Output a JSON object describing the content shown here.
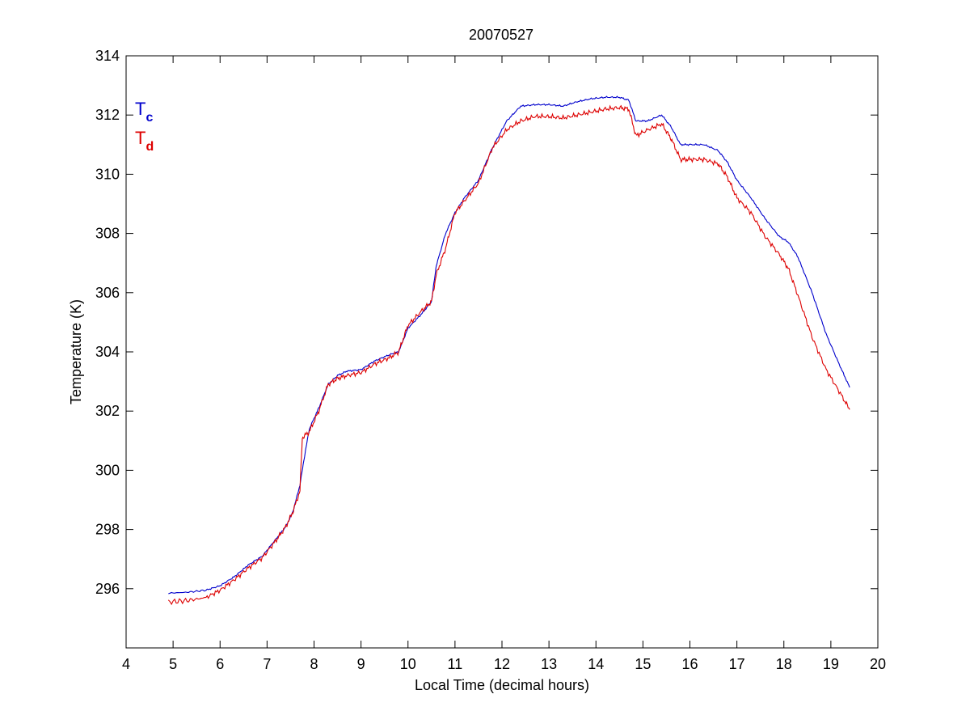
{
  "chart_data": {
    "type": "line",
    "title": "20070527",
    "xlabel": "Local Time (decimal hours)",
    "ylabel": "Temperature (K)",
    "xlim": [
      4,
      20
    ],
    "ylim": [
      294,
      314
    ],
    "xticks": [
      "4",
      "5",
      "6",
      "7",
      "8",
      "9",
      "10",
      "11",
      "12",
      "13",
      "14",
      "15",
      "16",
      "17",
      "18",
      "19",
      "20"
    ],
    "yticks": [
      "296",
      "298",
      "300",
      "302",
      "304",
      "306",
      "308",
      "310",
      "312",
      "314"
    ],
    "grid": false,
    "legend_position": "top-left",
    "series": [
      {
        "name": "Tc",
        "label_main": "T",
        "label_sub": "c",
        "color": "#0000cc",
        "x": [
          4.9,
          5.3,
          5.7,
          6.0,
          6.3,
          6.6,
          6.9,
          7.2,
          7.4,
          7.55,
          7.7,
          7.8,
          7.9,
          8.1,
          8.3,
          8.5,
          8.7,
          9.0,
          9.3,
          9.6,
          9.8,
          10.0,
          10.3,
          10.5,
          10.6,
          10.8,
          11.0,
          11.2,
          11.5,
          11.8,
          12.1,
          12.4,
          12.7,
          13.0,
          13.3,
          13.6,
          13.9,
          14.2,
          14.5,
          14.7,
          14.85,
          15.1,
          15.4,
          15.6,
          15.8,
          16.0,
          16.3,
          16.6,
          16.8,
          17.0,
          17.3,
          17.6,
          17.9,
          18.1,
          18.3,
          18.6,
          18.9,
          19.2,
          19.4
        ],
        "y": [
          295.85,
          295.88,
          295.95,
          296.1,
          296.4,
          296.8,
          297.1,
          297.7,
          298.1,
          298.6,
          299.5,
          300.5,
          301.4,
          302.1,
          302.9,
          303.2,
          303.35,
          303.4,
          303.7,
          303.9,
          304.0,
          304.8,
          305.3,
          305.7,
          306.9,
          308.0,
          308.7,
          309.2,
          309.8,
          310.9,
          311.8,
          312.3,
          312.35,
          312.35,
          312.3,
          312.45,
          312.55,
          312.6,
          312.6,
          312.5,
          311.8,
          311.8,
          312.0,
          311.6,
          311.0,
          311.0,
          311.0,
          310.8,
          310.4,
          309.8,
          309.2,
          308.5,
          307.9,
          307.7,
          307.2,
          306.0,
          304.6,
          303.5,
          302.8
        ]
      },
      {
        "name": "Td",
        "label_main": "T",
        "label_sub": "d",
        "color": "#dd0000",
        "x": [
          4.9,
          5.3,
          5.7,
          6.0,
          6.3,
          6.6,
          6.9,
          7.2,
          7.4,
          7.55,
          7.7,
          7.75,
          7.9,
          8.1,
          8.3,
          8.5,
          8.7,
          9.0,
          9.3,
          9.6,
          9.8,
          10.0,
          10.3,
          10.5,
          10.6,
          10.8,
          11.0,
          11.2,
          11.5,
          11.8,
          12.1,
          12.4,
          12.7,
          13.0,
          13.3,
          13.6,
          13.9,
          14.2,
          14.5,
          14.7,
          14.85,
          15.1,
          15.4,
          15.6,
          15.8,
          16.0,
          16.3,
          16.6,
          16.8,
          17.0,
          17.3,
          17.6,
          17.9,
          18.1,
          18.3,
          18.6,
          18.9,
          19.2,
          19.4
        ],
        "y": [
          295.55,
          295.6,
          295.7,
          295.95,
          296.3,
          296.7,
          297.05,
          297.65,
          298.1,
          298.6,
          299.3,
          301.1,
          301.3,
          302.0,
          302.9,
          303.1,
          303.2,
          303.3,
          303.6,
          303.8,
          304.0,
          304.9,
          305.4,
          305.7,
          306.6,
          307.5,
          308.7,
          309.1,
          309.7,
          310.9,
          311.5,
          311.8,
          311.95,
          311.95,
          311.9,
          312.0,
          312.1,
          312.2,
          312.25,
          312.2,
          311.3,
          311.5,
          311.7,
          311.2,
          310.5,
          310.5,
          310.5,
          310.35,
          309.9,
          309.2,
          308.7,
          307.9,
          307.3,
          306.8,
          305.9,
          304.5,
          303.4,
          302.6,
          302.05
        ]
      }
    ]
  }
}
